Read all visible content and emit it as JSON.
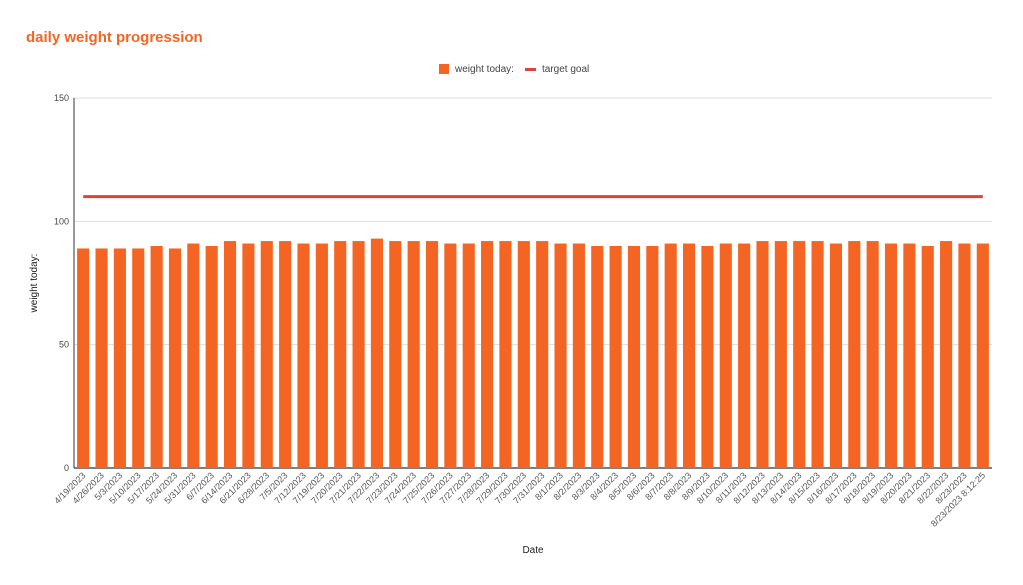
{
  "chart_data": {
    "type": "bar",
    "title": "daily weight progression",
    "xlabel": "Date",
    "ylabel": "weight today:",
    "ylim": [
      0,
      150
    ],
    "yticks": [
      0,
      50,
      100,
      150
    ],
    "grid": true,
    "legend_placement": "top",
    "categories": [
      "4/19/2023",
      "4/26/2023",
      "5/3/2023",
      "5/10/2023",
      "5/17/2023",
      "5/24/2023",
      "5/31/2023",
      "6/7/2023",
      "6/14/2023",
      "6/21/2023",
      "6/28/2023",
      "7/5/2023",
      "7/12/2023",
      "7/19/2023",
      "7/20/2023",
      "7/21/2023",
      "7/22/2023",
      "7/23/2023",
      "7/24/2023",
      "7/25/2023",
      "7/26/2023",
      "7/27/2023",
      "7/28/2023",
      "7/29/2023",
      "7/30/2023",
      "7/31/2023",
      "8/1/2023",
      "8/2/2023",
      "8/3/2023",
      "8/4/2023",
      "8/5/2023",
      "8/6/2023",
      "8/7/2023",
      "8/8/2023",
      "8/9/2023",
      "8/10/2023",
      "8/11/2023",
      "8/12/2023",
      "8/13/2023",
      "8/14/2023",
      "8/15/2023",
      "8/16/2023",
      "8/17/2023",
      "8/18/2023",
      "8/19/2023",
      "8/20/2023",
      "8/21/2023",
      "8/22/2023",
      "8/23/2023",
      "8/23/2023 8:12:25"
    ],
    "series": [
      {
        "name": "weight today:",
        "type": "bar",
        "color": "#f46524",
        "values": [
          89,
          89,
          89,
          89,
          90,
          89,
          91,
          90,
          92,
          91,
          92,
          92,
          91,
          91,
          92,
          92,
          93,
          92,
          92,
          92,
          91,
          91,
          92,
          92,
          92,
          92,
          91,
          91,
          90,
          90,
          90,
          90,
          91,
          91,
          90,
          91,
          91,
          92,
          92,
          92,
          92,
          91,
          92,
          92,
          91,
          91,
          90,
          92,
          91,
          91
        ]
      },
      {
        "name": "target goal",
        "type": "line",
        "color": "#db4437",
        "value": 110
      }
    ]
  }
}
